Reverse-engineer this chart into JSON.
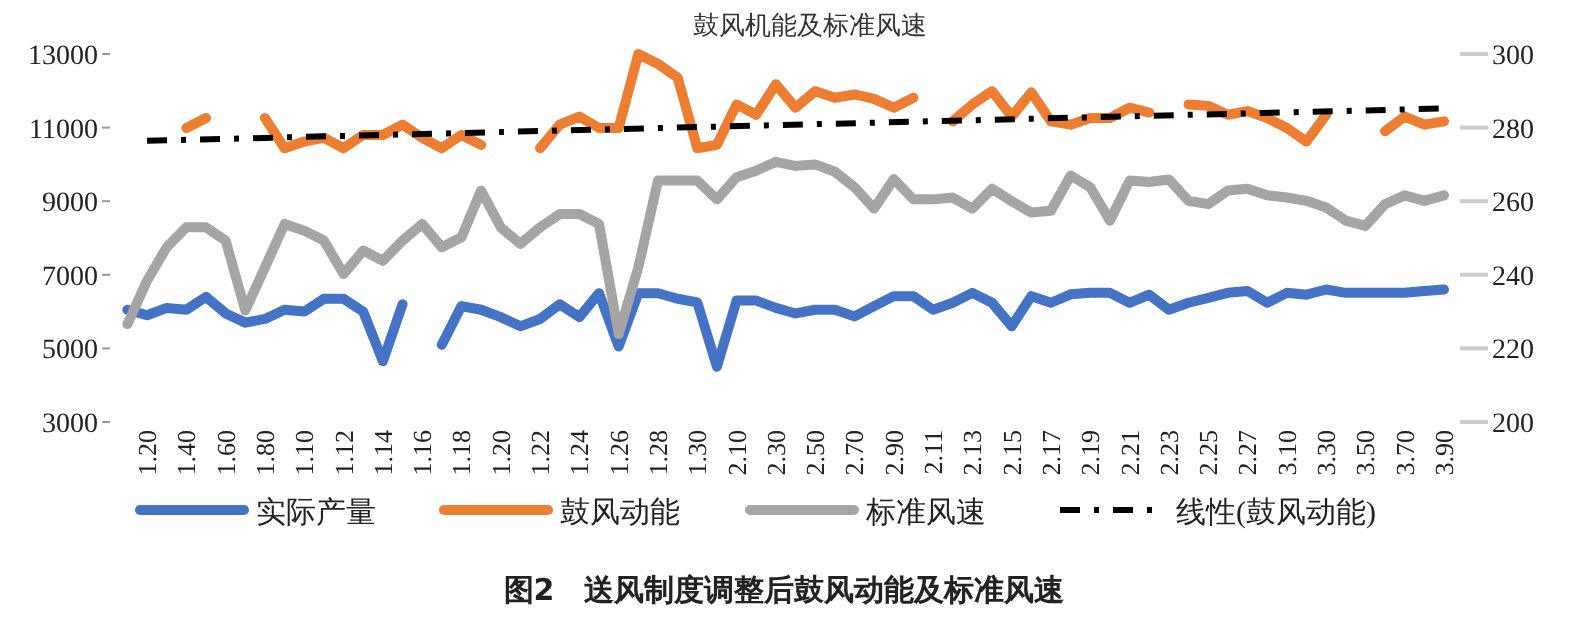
{
  "chart_data": {
    "type": "line",
    "title": "鼓风机能及标准风速",
    "categories": [
      null,
      "1.20",
      null,
      "1.40",
      null,
      "1.60",
      null,
      "1.80",
      null,
      "1.10",
      null,
      "1.12",
      null,
      "1.14",
      null,
      "1.16",
      null,
      "1.18",
      null,
      "1.20",
      null,
      "1.22",
      null,
      "1.24",
      null,
      "1.26",
      null,
      "1.28",
      null,
      "1.30",
      null,
      "2.10",
      null,
      "2.30",
      null,
      "2.50",
      null,
      "2.70",
      null,
      "2.90",
      null,
      "2.11",
      null,
      "2.13",
      null,
      "2.15",
      null,
      "2.17",
      null,
      "2.19",
      null,
      "2.21",
      null,
      "2.23",
      null,
      "2.25",
      null,
      "2.27",
      null,
      "3.10",
      null,
      "3.30",
      null,
      "3.50",
      null,
      "3.70",
      null,
      "3.90"
    ],
    "series": [
      {
        "name": "实际产量",
        "color": "#4472c4",
        "values": [
          6050,
          5900,
          6100,
          6050,
          6400,
          5950,
          5700,
          5800,
          6050,
          6000,
          6350,
          6350,
          6000,
          4650,
          6200,
          null,
          5100,
          6150,
          6050,
          5850,
          5600,
          5800,
          6200,
          5850,
          6500,
          5050,
          6500,
          6500,
          6350,
          6250,
          4500,
          6300,
          6300,
          6100,
          5950,
          6050,
          6050,
          5870,
          6150,
          6420,
          6420,
          6050,
          6240,
          6510,
          6240,
          5600,
          6420,
          6240,
          6470,
          6510,
          6510,
          6240,
          6460,
          6050,
          6240,
          6370,
          6510,
          6560,
          6240,
          6510,
          6460,
          6600,
          6510,
          6510,
          6510,
          6510,
          6560,
          6600
        ]
      },
      {
        "name": "鼓风动能",
        "color": "#ed7d31",
        "values": [
          null,
          null,
          null,
          10990,
          11260,
          null,
          null,
          11260,
          10440,
          10620,
          10720,
          10440,
          10800,
          10800,
          11080,
          10720,
          10440,
          10800,
          10530,
          null,
          null,
          10440,
          11080,
          11300,
          10990,
          10990,
          13000,
          12730,
          12360,
          10440,
          10530,
          11630,
          11350,
          12180,
          11540,
          11990,
          11810,
          11900,
          11780,
          11540,
          11810,
          null,
          11170,
          11630,
          11990,
          11300,
          11960,
          11170,
          11080,
          11260,
          11260,
          11540,
          11410,
          null,
          11630,
          11590,
          11350,
          11450,
          11260,
          10990,
          10620,
          11350,
          null,
          null,
          10900,
          11300,
          11080,
          11170
        ]
      },
      {
        "name": "标准风速",
        "color": "#a5a5a5",
        "axis": "y2",
        "values": [
          226.6,
          238.4,
          247.5,
          252.9,
          252.9,
          249.3,
          230.3,
          242,
          253.8,
          252,
          249.3,
          240.2,
          246.6,
          243.8,
          249.3,
          253.8,
          247.5,
          250.2,
          262.9,
          252.9,
          248.4,
          252.9,
          256.5,
          256.5,
          253.8,
          223.9,
          242,
          265.6,
          265.6,
          265.6,
          260.5,
          266.5,
          268.3,
          270.7,
          269.6,
          270,
          268,
          263.8,
          258,
          266,
          260.5,
          260.5,
          261,
          258,
          263.4,
          260,
          256.9,
          257.4,
          267,
          263.8,
          254.7,
          265.6,
          265.2,
          265.9,
          260.1,
          259.2,
          262.9,
          263.4,
          261.6,
          261,
          260.1,
          258.3,
          254.7,
          253.3,
          259.2,
          261.6,
          260.1,
          261.6
        ]
      },
      {
        "name": "线性(鼓风动能)",
        "color": "#000000",
        "type": "line",
        "line_style": "dashed",
        "x": [
          "1.20",
          "3.90"
        ],
        "values": [
          10640,
          11520
        ]
      }
    ],
    "ylim": [
      3000,
      13000
    ],
    "yticks": [
      3000,
      5000,
      7000,
      9000,
      11000,
      13000
    ],
    "y2lim": [
      200,
      300
    ],
    "y2ticks": [
      200,
      220,
      240,
      260,
      280,
      300
    ],
    "legend": "bottom",
    "grid": false,
    "marker": "none",
    "annotations": [
      "图2　送风制度调整后鼓风动能及标准风速"
    ]
  }
}
